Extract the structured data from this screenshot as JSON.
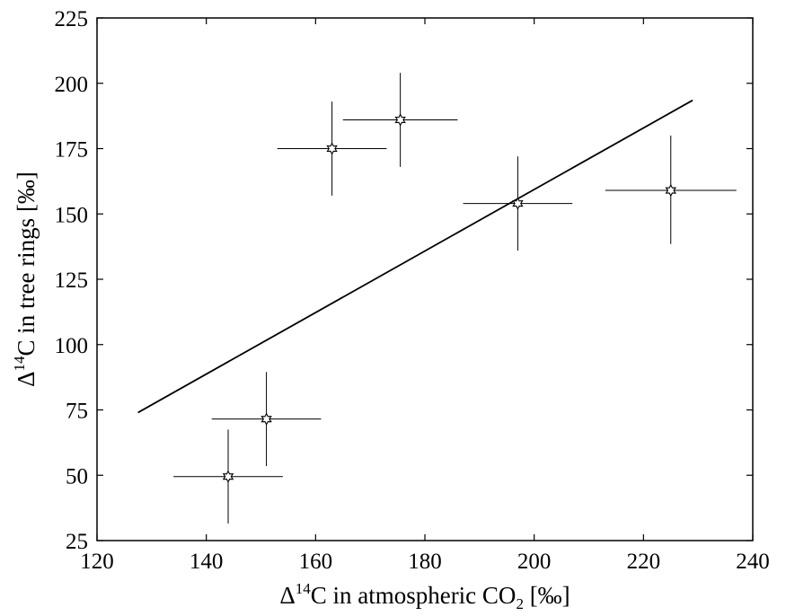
{
  "chart_data": {
    "type": "scatter",
    "xlabel": {
      "delta": "Δ",
      "sup": "14",
      "pre": "C in atmospheric CO",
      "sub": "2",
      "post": " [‰]"
    },
    "ylabel": {
      "delta": "Δ",
      "sup": "14",
      "post": "C in tree rings [‰]"
    },
    "xlim": [
      120,
      240
    ],
    "ylim": [
      25,
      225
    ],
    "xticks": [
      120,
      140,
      160,
      180,
      200,
      220,
      240
    ],
    "yticks": [
      25,
      50,
      75,
      100,
      125,
      150,
      175,
      200,
      225
    ],
    "grid": false,
    "series": [
      {
        "marker": "hexagram",
        "points": [
          {
            "x": 144,
            "y": 49.5,
            "xerr_low": 134,
            "xerr_high": 154,
            "yerr_low": 31.5,
            "yerr_high": 67.5
          },
          {
            "x": 151,
            "y": 71.5,
            "xerr_low": 141,
            "xerr_high": 161,
            "yerr_low": 53.5,
            "yerr_high": 89.5
          },
          {
            "x": 163,
            "y": 175,
            "xerr_low": 153,
            "xerr_high": 173,
            "yerr_low": 157,
            "yerr_high": 193
          },
          {
            "x": 175.5,
            "y": 186,
            "xerr_low": 165,
            "xerr_high": 186,
            "yerr_low": 168,
            "yerr_high": 204
          },
          {
            "x": 197,
            "y": 154,
            "xerr_low": 187,
            "xerr_high": 207,
            "yerr_low": 136,
            "yerr_high": 172
          },
          {
            "x": 225,
            "y": 159,
            "xerr_low": 213,
            "xerr_high": 237,
            "yerr_low": 138.5,
            "yerr_high": 180
          }
        ]
      }
    ],
    "fit_line": {
      "x": [
        127.5,
        229
      ],
      "y": [
        74,
        193.5
      ]
    },
    "colors": {
      "line": "#000000",
      "marker": "#000000",
      "background": "#ffffff"
    }
  }
}
